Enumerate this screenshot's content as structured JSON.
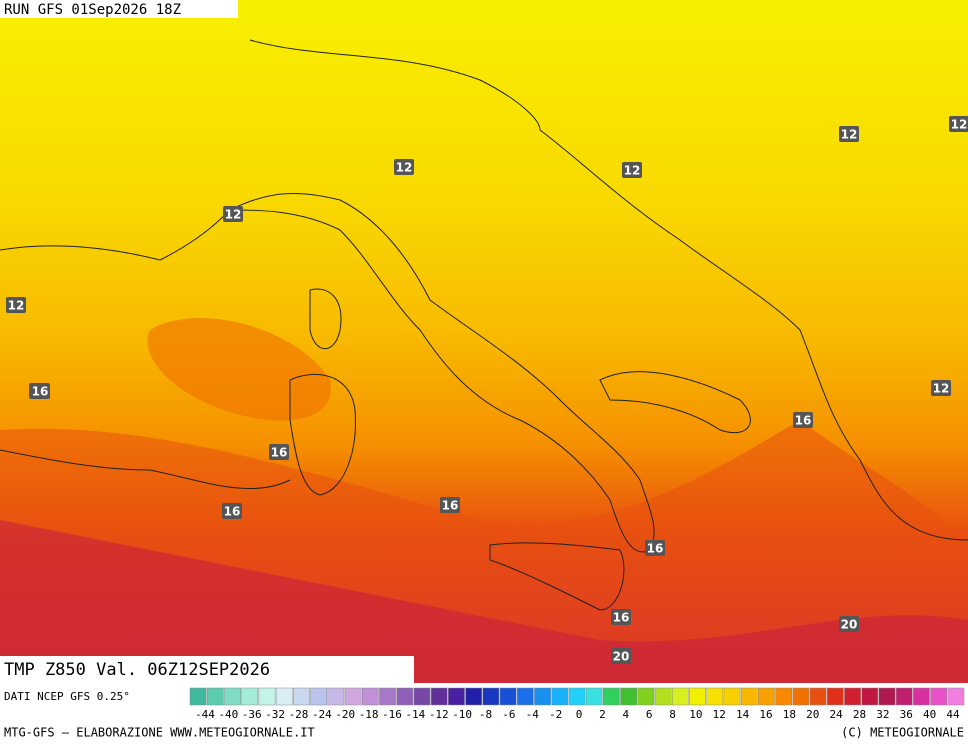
{
  "header": {
    "run": "RUN GFS 01Sep2026 18Z"
  },
  "map": {
    "title": "TMP Z850 Val. 06Z12SEP2026",
    "contour_labels": [
      "12",
      "12",
      "12",
      "12",
      "12",
      "12",
      "12",
      "16",
      "16",
      "16",
      "16",
      "16",
      "16",
      "16",
      "16",
      "20",
      "20"
    ]
  },
  "colorbar": {
    "source": "DATI NCEP GFS 0.25°",
    "ticks": [
      -44,
      -40,
      -36,
      -32,
      -28,
      -24,
      -20,
      -18,
      -16,
      -14,
      -12,
      -10,
      -8,
      -6,
      -4,
      -2,
      0,
      2,
      4,
      6,
      8,
      10,
      12,
      14,
      16,
      18,
      20,
      24,
      28,
      32,
      36,
      40,
      44
    ],
    "colors": [
      "#3fb8a0",
      "#5ccbb0",
      "#7fdcc4",
      "#a4ecd8",
      "#c4f4e8",
      "#d8eef4",
      "#c8d8f0",
      "#b8c4ec",
      "#c8b8e8",
      "#d0a8e0",
      "#c090d8",
      "#a878c8",
      "#9060b8",
      "#7848a8",
      "#603098",
      "#4820a0",
      "#2020a8",
      "#1838c0",
      "#1850d8",
      "#1a70e8",
      "#1890f0",
      "#18b0f8",
      "#20d0f8",
      "#38e0e0",
      "#30d060",
      "#40c030",
      "#80d020",
      "#b0e020",
      "#d8f020",
      "#f0f000",
      "#f8e000",
      "#f8d000",
      "#f8b800",
      "#f8a000",
      "#f88800",
      "#f07000",
      "#e85010",
      "#e03018",
      "#d02030",
      "#c01840",
      "#b01850",
      "#c02070",
      "#d830a0",
      "#e850c8",
      "#f080e0"
    ]
  },
  "footer": {
    "left": "MTG-GFS — ELABORAZIONE WWW.METEOGIORNALE.IT",
    "right": "(C) METEOGIORNALE"
  }
}
